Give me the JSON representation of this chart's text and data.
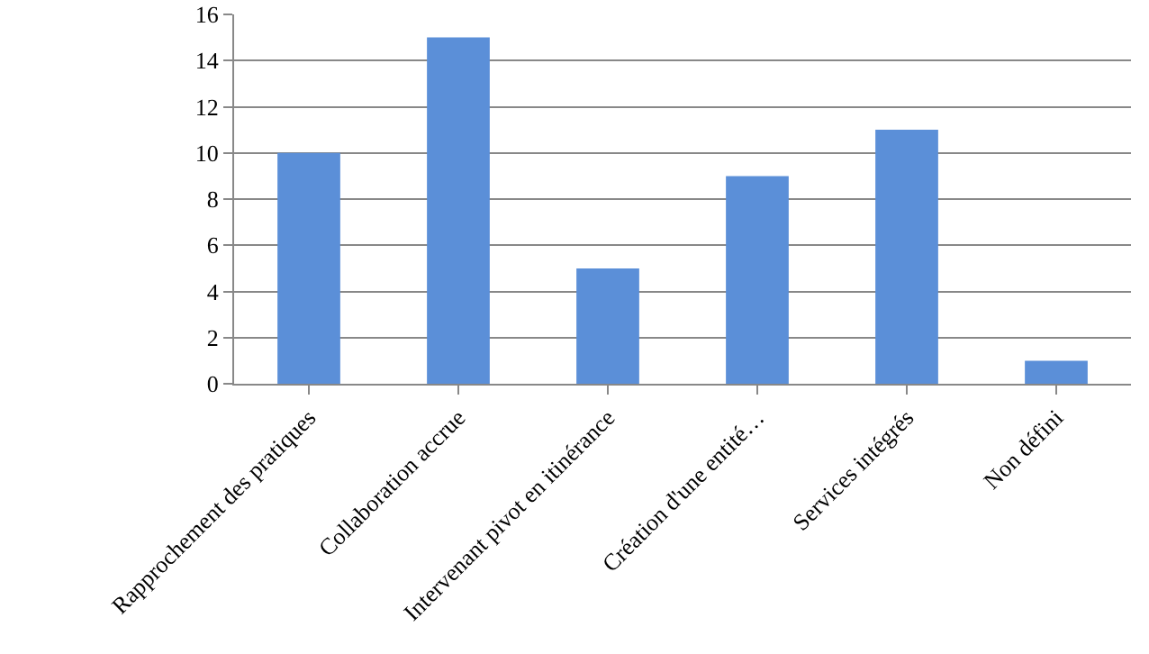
{
  "chart_data": {
    "type": "bar",
    "categories": [
      "Rapprochement des pratiques",
      "Collaboration accrue",
      "Intervenant pivot en itinérance",
      "Création d'une entité…",
      "Services intégrés",
      "Non défini"
    ],
    "values": [
      10,
      15,
      5,
      9,
      11,
      1
    ],
    "color": "#5b8fd8",
    "ylim": [
      0,
      16
    ],
    "yticks": [
      0,
      2,
      4,
      6,
      8,
      10,
      12,
      14,
      16
    ],
    "grid": "y"
  }
}
